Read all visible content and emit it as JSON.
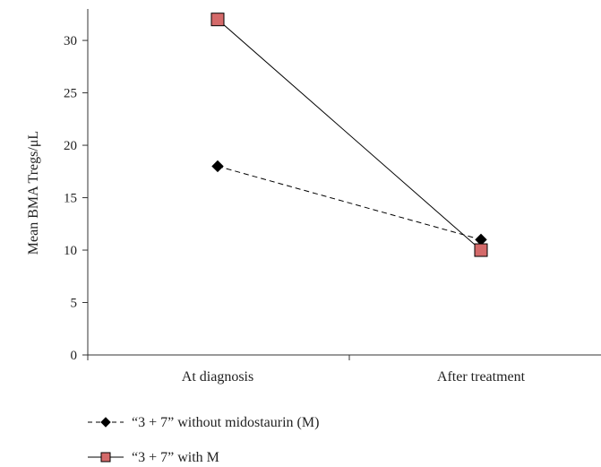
{
  "chart_data": {
    "type": "line",
    "categories": [
      "At diagnosis",
      "After treatment"
    ],
    "ylabel": "Mean BMA Tregs/μL",
    "ylim": [
      0,
      33
    ],
    "yticks": [
      0,
      5,
      10,
      15,
      20,
      25,
      30
    ],
    "grid": false,
    "legend_position": "bottom-left",
    "series": [
      {
        "name": "“3 + 7” without midostaurin (M)",
        "values": [
          18,
          11
        ],
        "line_style": "dashed",
        "marker": "diamond",
        "color": "#000000",
        "marker_fill": "#000000"
      },
      {
        "name": "“3 + 7” with M",
        "values": [
          32,
          10
        ],
        "line_style": "solid",
        "marker": "square",
        "color": "#000000",
        "marker_fill": "#d46a6a"
      }
    ]
  }
}
